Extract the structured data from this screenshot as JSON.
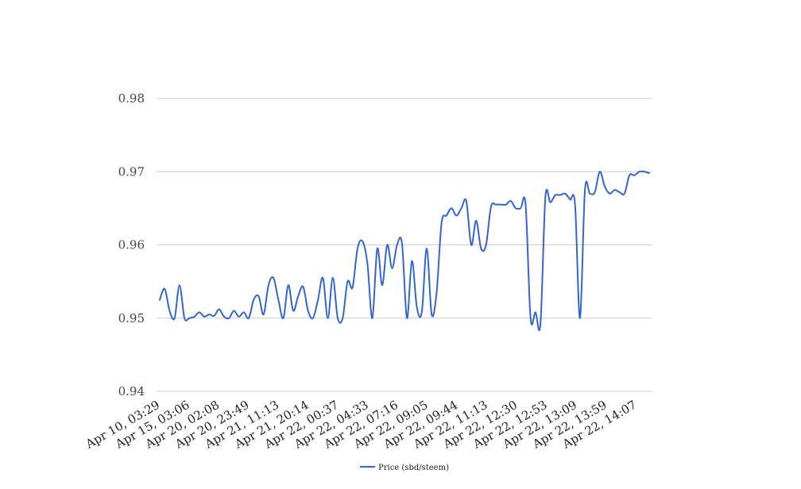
{
  "chart_data": {
    "type": "line",
    "title": "",
    "xlabel": "",
    "ylabel": "",
    "ylim": [
      0.94,
      0.98
    ],
    "y_ticks": [
      "0.94",
      "0.95",
      "0.96",
      "0.97",
      "0.98"
    ],
    "y_tick_values": [
      0.94,
      0.95,
      0.96,
      0.97,
      0.98
    ],
    "x_tick_labels": [
      "Apr 10, 03:29",
      "Apr 15, 03:06",
      "Apr 20, 02:08",
      "Apr 20, 23:49",
      "Apr 21, 11:13",
      "Apr 21, 20:14",
      "Apr 22, 00:37",
      "Apr 22, 04:33",
      "Apr 22, 07:16",
      "Apr 22, 09:05",
      "Apr 22, 09:44",
      "Apr 22, 11:13",
      "Apr 22, 12:30",
      "Apr 22, 12:53",
      "Apr 22, 13:09",
      "Apr 22, 13:59",
      "Apr 22, 14:07"
    ],
    "grid": true,
    "legend_position": "bottom",
    "series": [
      {
        "name": "Price (sbd/steem)",
        "color": "#3366cc",
        "values": [
          0.9525,
          0.954,
          0.951,
          0.95,
          0.9545,
          0.95,
          0.95,
          0.9502,
          0.9508,
          0.9502,
          0.9505,
          0.9503,
          0.9512,
          0.9502,
          0.95,
          0.951,
          0.9502,
          0.9508,
          0.95,
          0.9525,
          0.953,
          0.9505,
          0.9545,
          0.9555,
          0.9525,
          0.95,
          0.9545,
          0.951,
          0.953,
          0.9543,
          0.951,
          0.95,
          0.9525,
          0.9555,
          0.95,
          0.9555,
          0.95,
          0.95,
          0.955,
          0.9542,
          0.9595,
          0.9605,
          0.9575,
          0.95,
          0.9595,
          0.9545,
          0.96,
          0.9568,
          0.96,
          0.9602,
          0.95,
          0.9578,
          0.9515,
          0.9508,
          0.9595,
          0.9505,
          0.9535,
          0.963,
          0.964,
          0.965,
          0.964,
          0.965,
          0.966,
          0.96,
          0.9633,
          0.9595,
          0.96,
          0.9652,
          0.9655,
          0.9655,
          0.9655,
          0.966,
          0.965,
          0.965,
          0.9655,
          0.95,
          0.9508,
          0.9492,
          0.9665,
          0.9658,
          0.9668,
          0.9668,
          0.967,
          0.9662,
          0.9655,
          0.95,
          0.9675,
          0.967,
          0.9672,
          0.97,
          0.968,
          0.967,
          0.9675,
          0.9672,
          0.967,
          0.9695,
          0.9695,
          0.97,
          0.97,
          0.9698
        ]
      }
    ]
  }
}
